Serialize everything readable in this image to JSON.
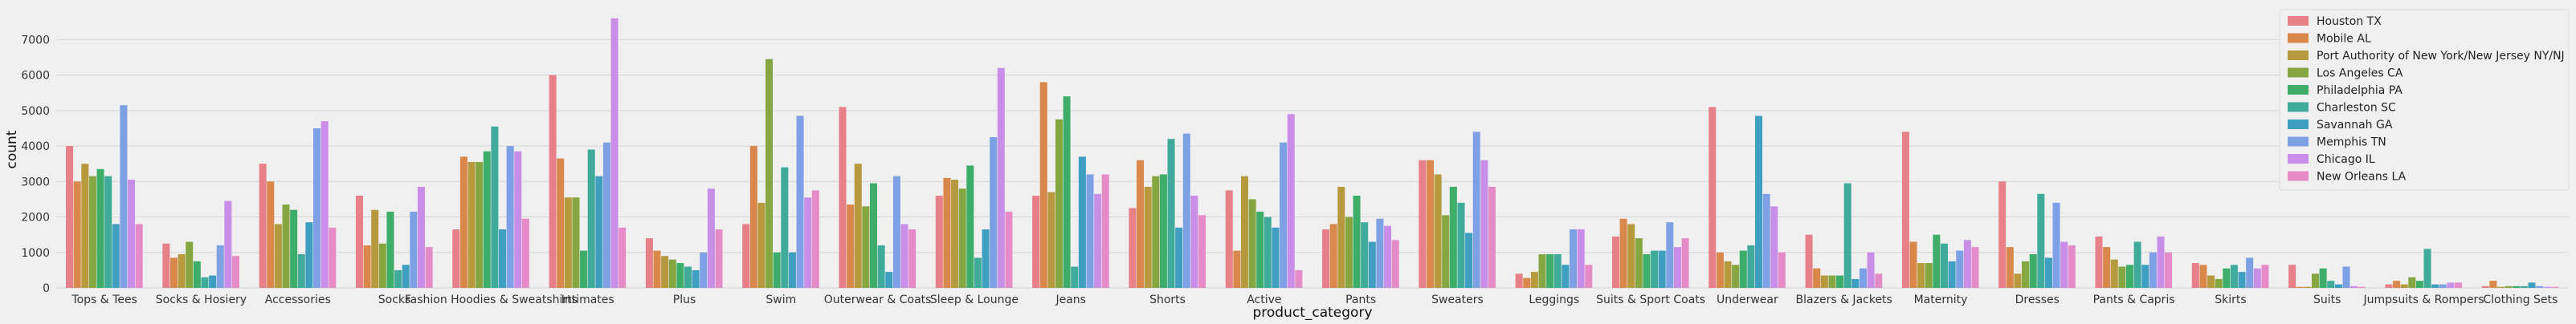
{
  "chart_data": {
    "type": "bar",
    "xlabel": "product_category",
    "ylabel": "count",
    "ylim": [
      0,
      7800
    ],
    "yticks": [
      0,
      1000,
      2000,
      3000,
      4000,
      5000,
      6000,
      7000
    ],
    "grid": true,
    "legend_position": "top-right",
    "categories": [
      "Tops & Tees",
      "Socks & Hosiery",
      "Accessories",
      "Socks",
      "Fashion Hoodies & Sweatshirts",
      "Intimates",
      "Plus",
      "Swim",
      "Outerwear & Coats",
      "Sleep & Lounge",
      "Jeans",
      "Shorts",
      "Active",
      "Pants",
      "Sweaters",
      "Leggings",
      "Suits & Sport Coats",
      "Underwear",
      "Blazers & Jackets",
      "Maternity",
      "Dresses",
      "Pants & Capris",
      "Skirts",
      "Suits",
      "Jumpsuits & Rompers",
      "Clothing Sets"
    ],
    "series": [
      {
        "name": "Houston TX",
        "color": "#e8808a",
        "values": [
          4000,
          1250,
          3500,
          2600,
          1650,
          6000,
          1400,
          1800,
          5100,
          2600,
          2600,
          2250,
          2750,
          1650,
          3600,
          400,
          1450,
          5100,
          1500,
          4400,
          3000,
          1450,
          700,
          650,
          100,
          50
        ]
      },
      {
        "name": "Mobile AL",
        "color": "#d9874a",
        "values": [
          3000,
          850,
          3000,
          1200,
          3700,
          3650,
          1050,
          4000,
          2350,
          3100,
          5800,
          3600,
          1050,
          1800,
          3600,
          280,
          1950,
          1000,
          550,
          1300,
          1150,
          1150,
          650,
          30,
          200,
          200
        ]
      },
      {
        "name": "Port Authority of New York/New Jersey NY/NJ",
        "color": "#b89a3e",
        "values": [
          3500,
          950,
          1800,
          2200,
          3550,
          2550,
          900,
          2400,
          3500,
          3050,
          2700,
          2850,
          3150,
          2850,
          3200,
          450,
          1800,
          750,
          350,
          700,
          400,
          800,
          350,
          30,
          100,
          30
        ]
      },
      {
        "name": "Los Angeles CA",
        "color": "#85a640",
        "values": [
          3150,
          1300,
          2350,
          1250,
          3550,
          2550,
          800,
          6450,
          2300,
          2800,
          4750,
          3150,
          2500,
          2000,
          2050,
          950,
          1400,
          650,
          350,
          700,
          750,
          600,
          250,
          400,
          300,
          50
        ]
      },
      {
        "name": "Philadelphia PA",
        "color": "#3fad6a",
        "values": [
          3350,
          750,
          2200,
          2150,
          3850,
          1050,
          700,
          1000,
          2950,
          3450,
          5400,
          3200,
          2150,
          2600,
          2850,
          950,
          950,
          1050,
          350,
          1500,
          950,
          650,
          550,
          550,
          200,
          50
        ]
      },
      {
        "name": "Charleston SC",
        "color": "#40ab9a",
        "values": [
          3150,
          300,
          950,
          500,
          4550,
          3900,
          600,
          3400,
          1200,
          850,
          600,
          4200,
          2000,
          1850,
          2400,
          950,
          1050,
          1200,
          2950,
          1250,
          2650,
          1300,
          650,
          200,
          1100,
          50
        ]
      },
      {
        "name": "Savannah GA",
        "color": "#3e9fc0",
        "values": [
          1800,
          350,
          1850,
          650,
          1650,
          3150,
          500,
          1000,
          450,
          1650,
          3700,
          1700,
          1700,
          1300,
          1550,
          650,
          1050,
          4850,
          250,
          750,
          850,
          650,
          450,
          100,
          100,
          150
        ]
      },
      {
        "name": "Memphis TN",
        "color": "#7ea0e4",
        "values": [
          5150,
          1200,
          4500,
          2150,
          4000,
          4100,
          1000,
          4850,
          3150,
          4250,
          3200,
          4350,
          4100,
          1950,
          4400,
          1650,
          1850,
          2650,
          550,
          1050,
          2400,
          1000,
          850,
          600,
          100,
          50
        ]
      },
      {
        "name": "Chicago IL",
        "color": "#c98ee8",
        "values": [
          3050,
          2450,
          4700,
          2850,
          3850,
          7600,
          2800,
          2550,
          1800,
          6200,
          2650,
          2600,
          4900,
          1750,
          3600,
          1650,
          1150,
          2300,
          1000,
          1350,
          1300,
          1450,
          550,
          50,
          150,
          30
        ]
      },
      {
        "name": "New Orleans LA",
        "color": "#e58cc8",
        "values": [
          1800,
          900,
          1700,
          1150,
          1950,
          1700,
          1650,
          2750,
          1650,
          2150,
          3200,
          2050,
          500,
          1350,
          2850,
          650,
          1400,
          1000,
          400,
          1150,
          1200,
          1000,
          650,
          30,
          150,
          30
        ]
      }
    ]
  }
}
